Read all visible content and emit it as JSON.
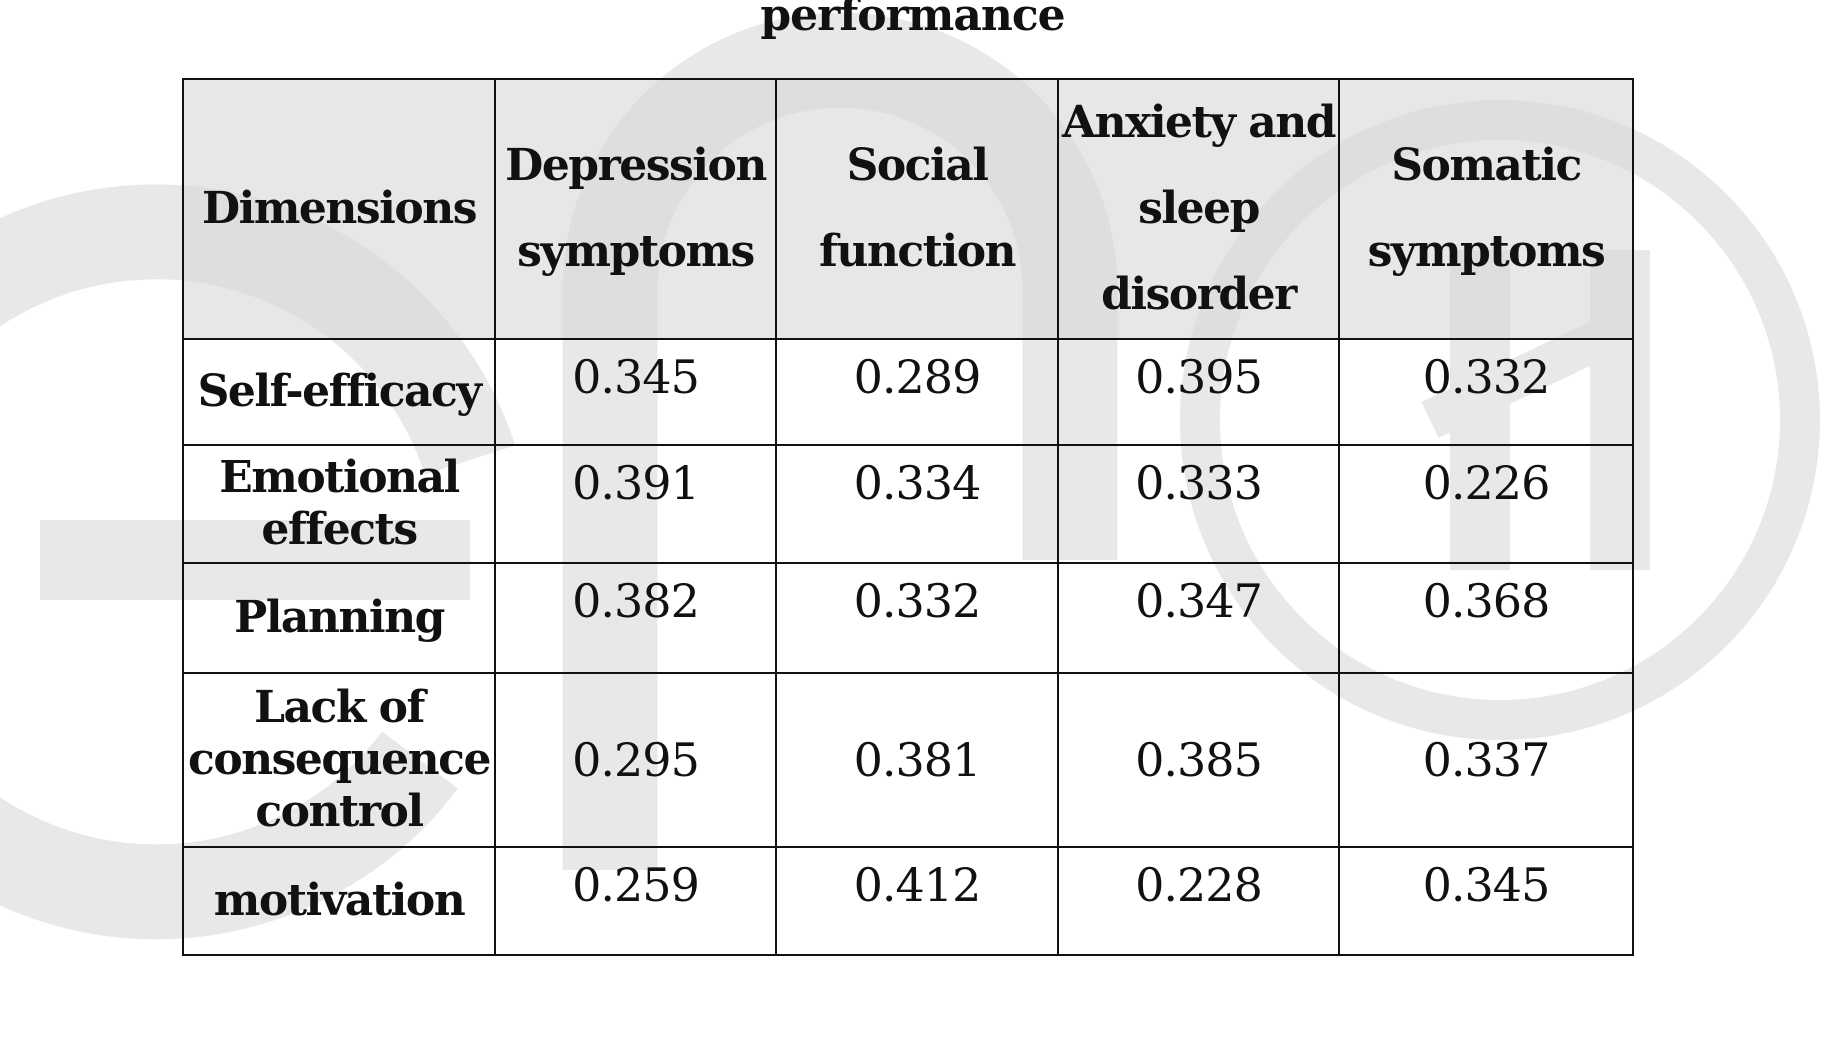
{
  "title": "performance",
  "table": {
    "headers": [
      "Dimensions",
      "Depression symptoms",
      "Social function",
      "Anxiety and sleep disorder",
      "Somatic symptoms"
    ],
    "rows": [
      {
        "label": "Self-efficacy",
        "values": [
          "0.345",
          "0.289",
          "0.395",
          "0.332"
        ]
      },
      {
        "label": "Emotional effects",
        "values": [
          "0.391",
          "0.334",
          "0.333",
          "0.226"
        ]
      },
      {
        "label": "Planning",
        "values": [
          "0.382",
          "0.332",
          "0.347",
          "0.368"
        ]
      },
      {
        "label": "Lack of consequence control",
        "values": [
          "0.295",
          "0.381",
          "0.385",
          "0.337"
        ]
      },
      {
        "label": "motivation",
        "values": [
          "0.259",
          "0.412",
          "0.228",
          "0.345"
        ]
      }
    ]
  },
  "colors": {
    "watermark": "#e6e6e6",
    "header_bg": "#e0e0e0",
    "border": "#111111"
  }
}
